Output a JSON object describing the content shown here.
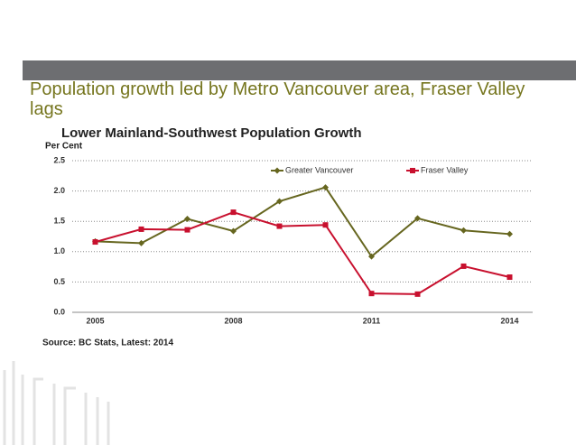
{
  "heading": "Population growth led by Metro Vancouver area, Fraser Valley lags",
  "chart_data": {
    "type": "line",
    "title": "Lower Mainland-Southwest Population Growth",
    "y_label": "Per Cent",
    "source": "Source: BC Stats, Latest: 2014",
    "x": [
      2005,
      2006,
      2007,
      2008,
      2009,
      2010,
      2011,
      2012,
      2013,
      2014
    ],
    "xlim": [
      2004.5,
      2014.5
    ],
    "xticks": [
      2005,
      2008,
      2011,
      2014
    ],
    "ylim": [
      0,
      2.5
    ],
    "yticks": [
      {
        "value": 0,
        "label": "0.0"
      },
      0.5,
      {
        "value": 1,
        "label": "1.0"
      },
      1.5,
      {
        "value": 2,
        "label": "2.0"
      },
      2.5
    ],
    "grid": true,
    "legend": "top",
    "series": [
      {
        "name": "Greater Vancouver",
        "color": "#66661f",
        "marker": "diamond",
        "values": [
          1.17,
          1.14,
          1.54,
          1.34,
          1.83,
          2.06,
          0.92,
          1.55,
          1.35,
          1.29
        ]
      },
      {
        "name": "Fraser Valley",
        "color": "#c8102e",
        "marker": "square",
        "values": [
          1.16,
          1.37,
          1.36,
          1.65,
          1.42,
          1.44,
          0.31,
          0.3,
          0.76,
          0.58
        ]
      }
    ]
  }
}
